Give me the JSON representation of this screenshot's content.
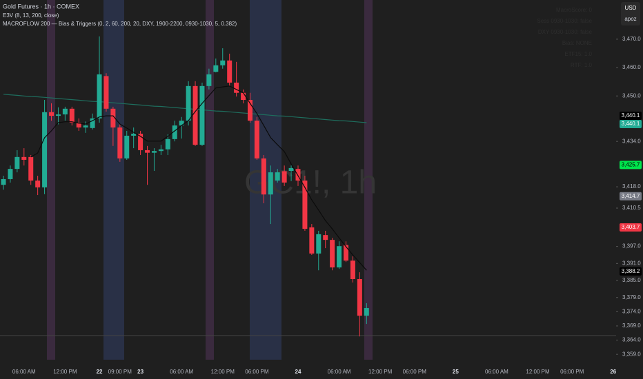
{
  "chart_data": {
    "type": "candlestick",
    "title": "Gold Futures · 1h · COMEX",
    "indicators": [
      "E3V (8, 13, 200, close)",
      "MACROFLOW 200 — Bias & Triggers (0, 2, 60, 200, 20, DXY, 1900-2200, 0930-1030, 5, 0.382)"
    ],
    "watermark": "GC1!, 1h",
    "currency": "USD",
    "user": "apoz",
    "panel": [
      "MacroScore: 0",
      "Sess 0930-1030: false",
      "DXY 0930-1030: false",
      "Bias: NONE",
      "ETF15: 1.0",
      "RTF: 1.0"
    ],
    "up_color": "#22ab94",
    "down_color": "#f23645",
    "categories": [
      null,
      null,
      null,
      "06:00 AM",
      null,
      null,
      null,
      null,
      null,
      "12:00 PM",
      null,
      null,
      null,
      null,
      "22",
      null,
      null,
      "09:00 PM",
      null,
      null,
      "23",
      null,
      null,
      null,
      null,
      null,
      "06:00 AM",
      null,
      null,
      null,
      null,
      null,
      "12:00 PM",
      null,
      null,
      null,
      null,
      "06:00 PM",
      null,
      null,
      null,
      null,
      null,
      "24",
      null,
      null,
      null,
      null,
      null,
      "06:00 AM",
      null,
      null,
      null,
      null,
      null,
      "12:00 PM",
      null,
      null,
      null,
      null,
      "06:00 PM",
      null,
      null,
      null,
      null,
      null,
      "25",
      null,
      null,
      null,
      null,
      null,
      "06:00 AM",
      null,
      null,
      null,
      null,
      null,
      "12:00 PM",
      null,
      null,
      null,
      null,
      "06:00 PM",
      null,
      null,
      null,
      null,
      null,
      "26"
    ],
    "open": [
      3418.7,
      3420.7,
      3424.3,
      3428.5,
      3428.5,
      3420.2,
      3417.8,
      3444.3,
      3443.0,
      3443.5,
      3445.5,
      3440.6,
      3438.9,
      3438.7,
      3442.1,
      3457.0,
      3445.5,
      3438.9,
      3428.0,
      3436.0,
      3436.7,
      3430.9,
      3430.0,
      3430.6,
      3431.2,
      3434.8,
      3439.6,
      3441.3,
      3453.5,
      3432.8,
      3453.5,
      3458.5,
      3460.8,
      3462.5,
      3454.7,
      3451.1,
      3448.6,
      3441.3,
      3428.0,
      3415.3,
      3420.2,
      3423.5,
      3423.6,
      3424.3,
      3420.2,
      3403.7,
      3394.5,
      3401.0,
      3399.3,
      3389.6,
      3397.5,
      3392.0,
      3385.5,
      3372.6,
      null,
      null,
      null,
      null,
      null,
      null,
      null,
      null,
      null,
      null,
      null,
      null,
      null,
      null,
      null,
      null,
      null,
      null,
      null,
      null,
      null,
      null,
      null,
      null,
      null,
      null,
      null,
      null,
      null,
      null,
      null,
      null,
      null,
      null,
      null,
      null
    ],
    "high": [
      3421.9,
      3425.5,
      3430.9,
      3431.6,
      3429.2,
      3421.9,
      3448.6,
      3447.4,
      3446.0,
      3446.2,
      3446.2,
      3442.1,
      3441.0,
      3443.8,
      3471.0,
      3458.0,
      3446.2,
      3440.1,
      3437.7,
      3438.9,
      3437.7,
      3432.4,
      3431.6,
      3432.8,
      3436.5,
      3441.3,
      3442.6,
      3455.2,
      3455.2,
      3454.7,
      3459.6,
      3463.2,
      3466.8,
      3464.9,
      3462.0,
      3452.3,
      3451.1,
      3442.6,
      3429.2,
      3425.5,
      3424.3,
      3425.5,
      3425.5,
      3425.5,
      3421.9,
      3404.9,
      3402.5,
      3402.5,
      3400.0,
      3398.8,
      3398.8,
      3393.5,
      3387.9,
      3377.0,
      null,
      null,
      null,
      null,
      null,
      null,
      null,
      null,
      null,
      null,
      null,
      null,
      null,
      null,
      null,
      null,
      null,
      null,
      null,
      null,
      null,
      null,
      null,
      null,
      null,
      null,
      null,
      null,
      null,
      null,
      null,
      null,
      null,
      null,
      null,
      null
    ],
    "low": [
      3417.0,
      3419.5,
      3423.1,
      3425.5,
      3418.7,
      3415.1,
      3415.4,
      3441.3,
      3440.0,
      3441.3,
      3439.6,
      3437.7,
      3437.0,
      3438.2,
      3440.6,
      3444.5,
      3432.4,
      3426.8,
      3427.5,
      3431.6,
      3429.2,
      3418.7,
      3423.6,
      3429.2,
      3429.2,
      3434.0,
      3435.0,
      3439.6,
      3432.4,
      3432.4,
      3452.3,
      3458.3,
      3459.6,
      3453.5,
      3449.8,
      3447.4,
      3440.6,
      3427.5,
      3412.2,
      3404.9,
      3419.5,
      3418.3,
      3420.0,
      3418.3,
      3402.5,
      3394.0,
      3388.6,
      3396.4,
      3388.6,
      3389.1,
      3391.5,
      3384.3,
      3365.3,
      3369.7,
      null,
      null,
      null,
      null,
      null,
      null,
      null,
      null,
      null,
      null,
      null,
      null,
      null,
      null,
      null,
      null,
      null,
      null,
      null,
      null,
      null,
      null,
      null,
      null,
      null,
      null,
      null,
      null,
      null,
      null,
      null,
      null,
      null,
      null,
      null,
      null
    ],
    "close": [
      3420.7,
      3424.3,
      3428.5,
      3427.5,
      3420.2,
      3417.8,
      3444.3,
      3443.0,
      3443.5,
      3445.5,
      3440.6,
      3438.9,
      3439.6,
      3442.1,
      3457.6,
      3445.5,
      3438.9,
      3428.0,
      3436.0,
      3436.7,
      3430.9,
      3430.0,
      3430.6,
      3431.2,
      3434.8,
      3439.6,
      3441.3,
      3453.5,
      3432.8,
      3453.5,
      3457.6,
      3460.8,
      3462.5,
      3454.7,
      3451.1,
      3448.6,
      3441.3,
      3428.0,
      3415.3,
      3423.1,
      3423.1,
      3419.5,
      3424.6,
      3420.2,
      3403.2,
      3394.5,
      3401.3,
      3399.3,
      3389.6,
      3397.1,
      3392.0,
      3385.5,
      3372.6,
      3375.3,
      null,
      null,
      null,
      null,
      null,
      null,
      null,
      null,
      null,
      null,
      null,
      null,
      null,
      null,
      null,
      null,
      null,
      null,
      null,
      null,
      null,
      null,
      null,
      null,
      null,
      null,
      null,
      null,
      null,
      null,
      null,
      null,
      null,
      null,
      null,
      null
    ],
    "lines": [
      {
        "color": "#0b0b0b",
        "values": [
          null,
          null,
          null,
          null,
          3428.5,
          3429.9,
          3435.3,
          3437.7,
          3440.6,
          3440.9,
          3440.9,
          3440.4,
          3440.1,
          3441.3,
          3442.6,
          3443.0,
          3443.0,
          3440.1,
          3438.7,
          3437.2,
          3435.8,
          3434.1,
          3434.1,
          3434.1,
          3435.8,
          3437.7,
          3439.6,
          3441.3,
          3444.5,
          3447.4,
          3450.1,
          3452.8,
          3453.2,
          3453.5,
          3452.3,
          3451.1,
          3447.4,
          3443.8,
          3439.6,
          3435.3,
          3432.8,
          3430.4,
          3426.0,
          3421.9,
          3417.8,
          3413.4,
          3409.8,
          3406.1,
          3403.2,
          3400.0,
          3396.9,
          3394.0,
          3391.3,
          3388.6,
          null,
          null,
          null,
          null,
          null,
          null,
          null,
          null,
          null,
          null,
          null,
          null,
          null,
          null,
          null,
          null,
          null,
          null,
          null,
          null,
          null,
          null,
          null,
          null,
          null,
          null,
          null,
          null,
          null,
          null,
          null,
          null,
          null,
          null,
          null,
          null
        ]
      },
      {
        "color": "#1e6e5e",
        "values": [
          3450.6,
          3450.4,
          3450.2,
          3450.0,
          3449.8,
          3449.7,
          3449.5,
          3449.3,
          3449.1,
          3448.9,
          3448.7,
          3448.5,
          3448.3,
          3448.1,
          3448.0,
          3447.8,
          3447.6,
          3447.4,
          3447.2,
          3447.0,
          3446.8,
          3446.6,
          3446.4,
          3446.3,
          3446.1,
          3445.9,
          3445.7,
          3445.5,
          3445.3,
          3445.1,
          3444.9,
          3444.7,
          3444.6,
          3444.4,
          3444.2,
          3444.0,
          3443.8,
          3443.6,
          3443.4,
          3443.2,
          3443.0,
          3442.9,
          3442.7,
          3442.5,
          3442.3,
          3442.1,
          3441.9,
          3441.7,
          3441.5,
          3441.3,
          3441.2,
          3441.0,
          3440.8,
          3440.6,
          null,
          null,
          null,
          null,
          null,
          null,
          null,
          null,
          null,
          null,
          null,
          null,
          null,
          null,
          null,
          null,
          null,
          null,
          null,
          null,
          null,
          null,
          null,
          null,
          null,
          null,
          null,
          null,
          null,
          null,
          null,
          null,
          null,
          null,
          null,
          null
        ]
      }
    ],
    "hline": 3365.6,
    "ylim": [
      3357.1,
      3483.8
    ],
    "yticks": [
      {
        "value": 3470,
        "label": "3,470.0"
      },
      {
        "value": 3460,
        "label": "3,460.0"
      },
      {
        "value": 3450,
        "label": "3,450.0"
      },
      {
        "value": 3434,
        "label": "3,434.0"
      },
      {
        "value": 3418,
        "label": "3,418.0"
      },
      {
        "value": 3410.5,
        "label": "3,410.5"
      },
      {
        "value": 3397,
        "label": "3,397.0"
      },
      {
        "value": 3391,
        "label": "3,391.0"
      },
      {
        "value": 3385,
        "label": "3,385.0"
      },
      {
        "value": 3379,
        "label": "3,379.0"
      },
      {
        "value": 3374,
        "label": "3,374.0"
      },
      {
        "value": 3369,
        "label": "3,369.0"
      },
      {
        "value": 3364,
        "label": "3,364.0"
      },
      {
        "value": 3359,
        "label": "3,359.0"
      }
    ],
    "price_tags": [
      {
        "value": 3440.1,
        "label": "3,440.1",
        "color": "#000000"
      },
      {
        "value": 3440.1,
        "label": "3,440.1",
        "color": "#22ab94"
      },
      {
        "value": 3425.7,
        "label": "3,425.7",
        "color": "#00e64d"
      },
      {
        "value": 3414.7,
        "label": "3,414.7",
        "color": "#787b86"
      },
      {
        "value": 3403.7,
        "label": "3,403.7",
        "color": "#f23645"
      },
      {
        "value": 3388.2,
        "label": "3,388.2",
        "color": "#000000"
      }
    ]
  }
}
